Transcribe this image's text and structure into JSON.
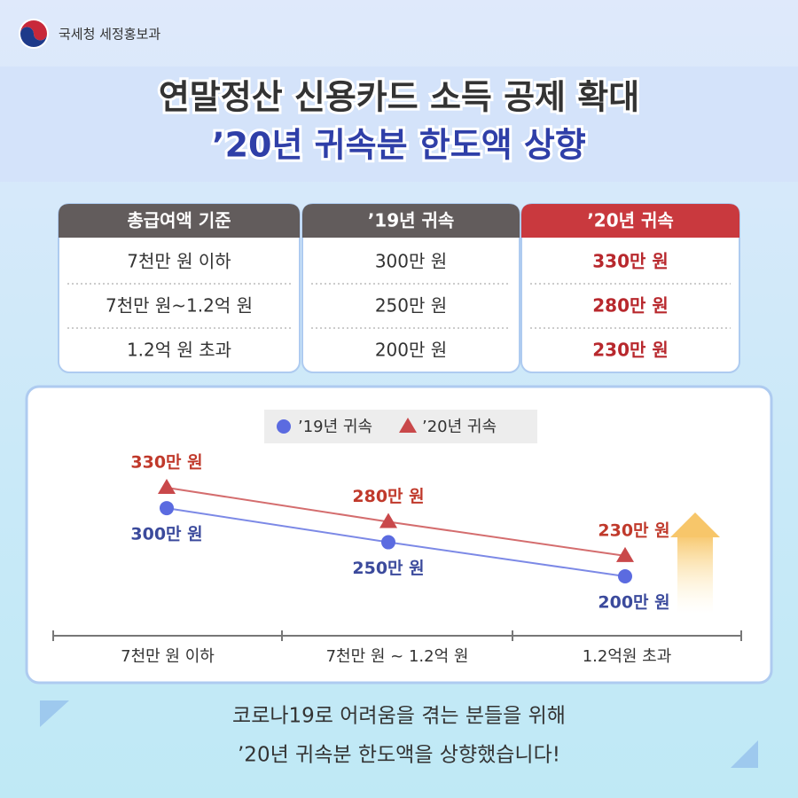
{
  "header": {
    "org": "국세청 세정홍보과",
    "title_line1": "연말정산 신용카드 소득 공제 확대",
    "title_line2": "’20년 귀속분 한도액 상향"
  },
  "table": {
    "header": [
      "총급여액 기준",
      "’19년 귀속",
      "’20년 귀속"
    ],
    "rows": [
      [
        "7천만 원 이하",
        "300만 원",
        "330만 원"
      ],
      [
        "7천만 원~1.2억 원",
        "250만 원",
        "280만 원"
      ],
      [
        "1.2억 원 초과",
        "200만 원",
        "230만 원"
      ]
    ]
  },
  "chart_data": {
    "type": "line",
    "categories": [
      "7천만 원 이하",
      "7천만 원 ~ 1.2억 원",
      "1.2억원 초과"
    ],
    "series": [
      {
        "name": "’19년 귀속",
        "color": "#5b6be0",
        "marker": "circle",
        "values": [
          300,
          250,
          200
        ],
        "value_labels": [
          "300만 원",
          "250만 원",
          "200만 원"
        ]
      },
      {
        "name": "’20년 귀속",
        "color": "#c9484a",
        "marker": "triangle",
        "values": [
          330,
          280,
          230
        ],
        "value_labels": [
          "330만 원",
          "280만 원",
          "230만 원"
        ]
      }
    ]
  },
  "footer": {
    "line1": "코로나19로 어려움을 겪는 분들을 위해",
    "line2": "’20년 귀속분 한도액을 상향했습니다!"
  }
}
